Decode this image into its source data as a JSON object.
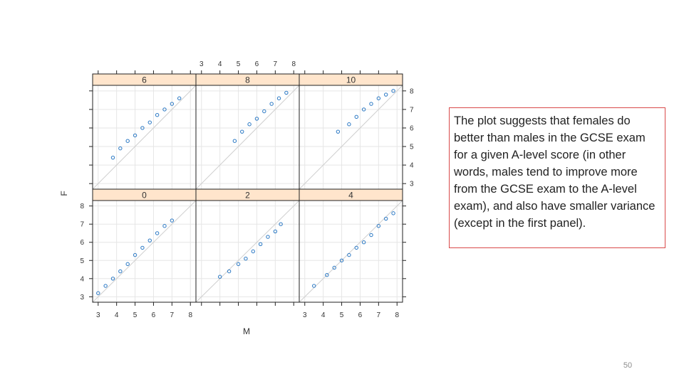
{
  "slide": {
    "note": "The plot suggests that females do better than males in the GCSE exam for a given A-level score (in other words, males tend to improve more from the GCSE exam to the A-level exam), and also have smaller variance (except in the first panel).",
    "page_number": "50"
  },
  "chart_data": {
    "type": "scatter",
    "layout": "lattice 3x2",
    "xlabel": "M",
    "ylabel": "F",
    "xlim": [
      2.7,
      8.3
    ],
    "ylim": [
      2.7,
      8.3
    ],
    "x_ticks": [
      "3",
      "4",
      "5",
      "6",
      "7",
      "8"
    ],
    "y_ticks": [
      "3",
      "4",
      "5",
      "6",
      "7",
      "8"
    ],
    "reference_line": "y = x",
    "grid": true,
    "colors": {
      "points": "#2a78c4",
      "strip": "#ffe5cc",
      "grid": "#e6e6e6",
      "ref_line": "#cfcfcf"
    },
    "panels": [
      {
        "label": "0",
        "points": [
          [
            3.0,
            3.2
          ],
          [
            3.4,
            3.6
          ],
          [
            3.8,
            4.0
          ],
          [
            4.2,
            4.4
          ],
          [
            4.6,
            4.8
          ],
          [
            5.0,
            5.3
          ],
          [
            5.4,
            5.7
          ],
          [
            5.8,
            6.1
          ],
          [
            6.2,
            6.5
          ],
          [
            6.6,
            6.9
          ],
          [
            7.0,
            7.2
          ]
        ]
      },
      {
        "label": "2",
        "points": [
          [
            4.0,
            4.1
          ],
          [
            4.5,
            4.4
          ],
          [
            5.0,
            4.8
          ],
          [
            5.4,
            5.1
          ],
          [
            5.8,
            5.5
          ],
          [
            6.2,
            5.9
          ],
          [
            6.6,
            6.3
          ],
          [
            7.0,
            6.6
          ],
          [
            7.3,
            7.0
          ]
        ]
      },
      {
        "label": "4",
        "points": [
          [
            3.5,
            3.6
          ],
          [
            4.2,
            4.2
          ],
          [
            4.6,
            4.6
          ],
          [
            5.0,
            5.0
          ],
          [
            5.4,
            5.3
          ],
          [
            5.8,
            5.7
          ],
          [
            6.2,
            6.0
          ],
          [
            6.6,
            6.4
          ],
          [
            7.0,
            6.9
          ],
          [
            7.4,
            7.3
          ],
          [
            7.8,
            7.6
          ]
        ]
      },
      {
        "label": "6",
        "points": [
          [
            3.8,
            4.4
          ],
          [
            4.2,
            4.9
          ],
          [
            4.6,
            5.3
          ],
          [
            5.0,
            5.6
          ],
          [
            5.4,
            6.0
          ],
          [
            5.8,
            6.3
          ],
          [
            6.2,
            6.7
          ],
          [
            6.6,
            7.0
          ],
          [
            7.0,
            7.3
          ],
          [
            7.4,
            7.6
          ]
        ]
      },
      {
        "label": "8",
        "points": [
          [
            4.8,
            5.3
          ],
          [
            5.2,
            5.8
          ],
          [
            5.6,
            6.2
          ],
          [
            6.0,
            6.5
          ],
          [
            6.4,
            6.9
          ],
          [
            6.8,
            7.3
          ],
          [
            7.2,
            7.6
          ],
          [
            7.6,
            7.9
          ]
        ]
      },
      {
        "label": "10",
        "points": [
          [
            4.8,
            5.8
          ],
          [
            5.4,
            6.2
          ],
          [
            5.8,
            6.6
          ],
          [
            6.2,
            7.0
          ],
          [
            6.6,
            7.3
          ],
          [
            7.0,
            7.6
          ],
          [
            7.4,
            7.8
          ],
          [
            7.8,
            8.0
          ]
        ]
      }
    ]
  }
}
